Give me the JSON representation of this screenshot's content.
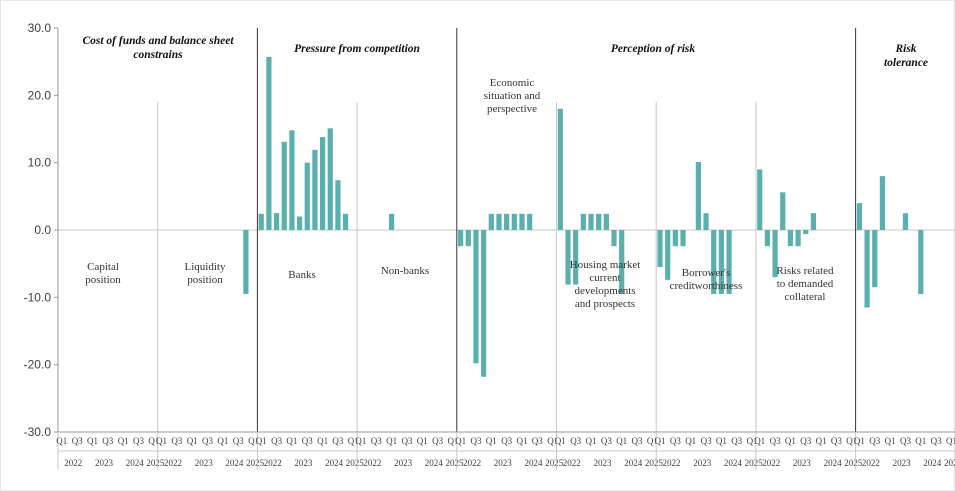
{
  "chart_data": {
    "type": "bar",
    "ylim": [
      -30,
      30
    ],
    "yticks": [
      "30.0",
      "20.0",
      "10.0",
      "0.0",
      "-10.0",
      "-20.0",
      "-30.0"
    ],
    "bar_color": "#5BAFAE",
    "grid": false,
    "legend": "none",
    "quarter_labels": [
      "Q1",
      "Q3",
      "Q1",
      "Q3",
      "Q1",
      "Q3",
      "Q1"
    ],
    "year_labels": [
      "2022",
      "2023",
      "2024",
      "2025"
    ],
    "groups": [
      {
        "title": "Cost of funds and balance sheet constrains",
        "panels": [
          0,
          1
        ]
      },
      {
        "title": "Pressure from competition",
        "panels": [
          2,
          3
        ]
      },
      {
        "title": "Perception of risk",
        "panels": [
          4,
          5,
          6,
          7
        ]
      },
      {
        "title": "Risk tolerance",
        "panels": [
          8
        ]
      }
    ],
    "panels": [
      {
        "label": "Capital position",
        "values": [
          0,
          0,
          0,
          0,
          0,
          0,
          0,
          0,
          0,
          0,
          0,
          0,
          0
        ]
      },
      {
        "label": "Liquidity position",
        "values": [
          0,
          0,
          0,
          0,
          0,
          0,
          0,
          0,
          0,
          0,
          0,
          -9.5,
          0
        ]
      },
      {
        "label": "Banks",
        "values": [
          2.4,
          25.7,
          2.5,
          13.1,
          14.8,
          2.0,
          10.0,
          11.9,
          13.8,
          15.1,
          7.4,
          2.4,
          0
        ]
      },
      {
        "label": "Non-banks",
        "values": [
          0,
          0,
          0,
          0,
          2.4,
          0,
          0,
          0,
          0,
          0,
          0,
          0,
          0
        ]
      },
      {
        "label": "Economic situation and perspective",
        "values": [
          -2.4,
          -2.4,
          -19.8,
          -21.8,
          2.4,
          2.4,
          2.4,
          2.4,
          2.4,
          2.4,
          0,
          0,
          0
        ]
      },
      {
        "label": "Housing market current developments and prospects",
        "values": [
          18.0,
          -8.1,
          -8.1,
          2.4,
          2.4,
          2.4,
          2.4,
          -2.4,
          -9.5,
          0,
          0,
          0,
          0
        ]
      },
      {
        "label": "Borrower's creditworthiness",
        "values": [
          -5.5,
          -7.4,
          -2.4,
          -2.4,
          0,
          10.1,
          2.5,
          -9.5,
          -9.5,
          -9.5,
          0,
          0,
          0
        ]
      },
      {
        "label": "Risks related to demanded collateral",
        "values": [
          9.0,
          -2.4,
          -7.0,
          5.6,
          -2.4,
          -2.4,
          -0.6,
          2.5,
          0,
          0,
          0,
          0,
          0
        ]
      },
      {
        "label": "Risk tolerance",
        "values": [
          4.0,
          -11.5,
          -8.5,
          8.0,
          0,
          0,
          2.5,
          0,
          -9.5,
          0,
          0,
          0,
          0
        ]
      }
    ]
  }
}
